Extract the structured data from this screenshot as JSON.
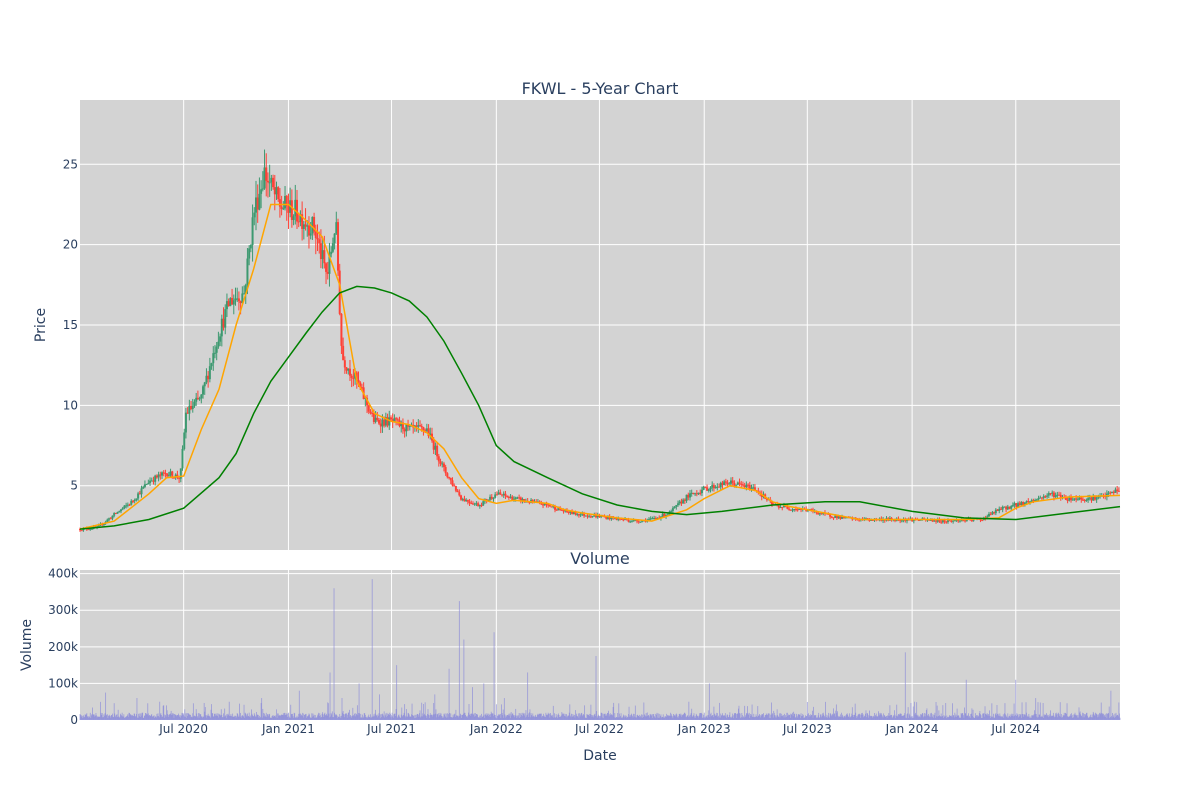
{
  "chart_data": [
    {
      "type": "candlestick",
      "title": "FKWL - 5-Year Chart",
      "ylabel": "Price",
      "ylim": [
        1,
        29
      ],
      "yticks": [
        5,
        10,
        15,
        20,
        25
      ],
      "x_range": [
        "2020-01-01",
        "2024-12-31"
      ],
      "x_ticks": [
        {
          "date": "2020-07-01",
          "label": "Jul 2020"
        },
        {
          "date": "2021-01-01",
          "label": "Jan 2021"
        },
        {
          "date": "2021-07-01",
          "label": "Jul 2021"
        },
        {
          "date": "2022-01-01",
          "label": "Jan 2022"
        },
        {
          "date": "2022-07-01",
          "label": "Jul 2022"
        },
        {
          "date": "2023-01-01",
          "label": "Jan 2023"
        },
        {
          "date": "2023-07-01",
          "label": "Jul 2023"
        },
        {
          "date": "2024-01-01",
          "label": "Jan 2024"
        },
        {
          "date": "2024-07-01",
          "label": "Jul 2024"
        }
      ],
      "colors": {
        "increasing": "#3d9970",
        "decreasing": "#ff4136",
        "ma_short": "#ffa500",
        "ma_long": "#008000",
        "plot_bg": "#d3d3d3",
        "grid": "#ffffff"
      },
      "price_path": [
        [
          "2020-01-01",
          2.3
        ],
        [
          "2020-02-01",
          2.4
        ],
        [
          "2020-03-01",
          3.2
        ],
        [
          "2020-04-01",
          4.0
        ],
        [
          "2020-05-01",
          5.3
        ],
        [
          "2020-06-01",
          5.8
        ],
        [
          "2020-06-25",
          5.5
        ],
        [
          "2020-07-05",
          9.5
        ],
        [
          "2020-08-01",
          10.5
        ],
        [
          "2020-09-01",
          14.5
        ],
        [
          "2020-09-20",
          16.5
        ],
        [
          "2020-10-15",
          17.0
        ],
        [
          "2020-11-01",
          22.0
        ],
        [
          "2020-11-20",
          24.5
        ],
        [
          "2020-12-15",
          22.5
        ],
        [
          "2021-01-15",
          22.0
        ],
        [
          "2021-02-15",
          21.0
        ],
        [
          "2021-03-10",
          18.0
        ],
        [
          "2021-03-25",
          21.5
        ],
        [
          "2021-04-05",
          13.0
        ],
        [
          "2021-05-01",
          11.5
        ],
        [
          "2021-06-01",
          9.0
        ],
        [
          "2021-07-01",
          9.0
        ],
        [
          "2021-08-01",
          8.5
        ],
        [
          "2021-09-01",
          8.5
        ],
        [
          "2021-10-01",
          6.0
        ],
        [
          "2021-11-01",
          4.2
        ],
        [
          "2021-12-01",
          3.8
        ],
        [
          "2022-01-01",
          4.5
        ],
        [
          "2022-02-01",
          4.2
        ],
        [
          "2022-03-01",
          4.0
        ],
        [
          "2022-04-01",
          3.8
        ],
        [
          "2022-05-01",
          3.4
        ],
        [
          "2022-06-01",
          3.2
        ],
        [
          "2022-07-01",
          3.1
        ],
        [
          "2022-09-01",
          2.8
        ],
        [
          "2022-10-01",
          2.9
        ],
        [
          "2022-11-01",
          3.3
        ],
        [
          "2022-12-01",
          4.3
        ],
        [
          "2023-01-01",
          4.8
        ],
        [
          "2023-02-15",
          5.2
        ],
        [
          "2023-04-01",
          4.8
        ],
        [
          "2023-05-01",
          3.8
        ],
        [
          "2023-06-01",
          3.6
        ],
        [
          "2023-07-01",
          3.5
        ],
        [
          "2023-08-01",
          3.2
        ],
        [
          "2023-09-01",
          3.0
        ],
        [
          "2023-10-01",
          2.9
        ],
        [
          "2023-11-01",
          2.9
        ],
        [
          "2024-01-01",
          2.9
        ],
        [
          "2024-03-01",
          2.8
        ],
        [
          "2024-05-01",
          2.9
        ],
        [
          "2024-06-01",
          3.5
        ],
        [
          "2024-07-01",
          3.8
        ],
        [
          "2024-08-01",
          4.1
        ],
        [
          "2024-09-01",
          4.5
        ],
        [
          "2024-10-01",
          4.2
        ],
        [
          "2024-11-01",
          4.2
        ],
        [
          "2024-12-01",
          4.3
        ],
        [
          "2024-12-31",
          4.8
        ]
      ],
      "series": [
        {
          "kind": "moving-average",
          "color": "#ffa500",
          "points": [
            [
              "2020-01-01",
              2.3
            ],
            [
              "2020-03-01",
              2.8
            ],
            [
              "2020-05-01",
              4.5
            ],
            [
              "2020-06-01",
              5.5
            ],
            [
              "2020-07-01",
              5.6
            ],
            [
              "2020-08-01",
              8.5
            ],
            [
              "2020-09-01",
              11.0
            ],
            [
              "2020-10-01",
              15.0
            ],
            [
              "2020-11-01",
              18.5
            ],
            [
              "2020-12-01",
              22.5
            ],
            [
              "2021-01-01",
              22.5
            ],
            [
              "2021-02-01",
              21.5
            ],
            [
              "2021-03-01",
              20.5
            ],
            [
              "2021-04-01",
              17.5
            ],
            [
              "2021-05-01",
              11.5
            ],
            [
              "2021-06-01",
              9.5
            ],
            [
              "2021-07-01",
              9.0
            ],
            [
              "2021-08-01",
              8.8
            ],
            [
              "2021-09-01",
              8.3
            ],
            [
              "2021-10-01",
              7.3
            ],
            [
              "2021-11-01",
              5.5
            ],
            [
              "2021-12-01",
              4.2
            ],
            [
              "2022-01-01",
              3.9
            ],
            [
              "2022-02-01",
              4.1
            ],
            [
              "2022-03-01",
              4.0
            ],
            [
              "2022-04-01",
              3.9
            ],
            [
              "2022-05-01",
              3.5
            ],
            [
              "2022-06-01",
              3.3
            ],
            [
              "2022-08-01",
              3.0
            ],
            [
              "2022-10-01",
              2.8
            ],
            [
              "2022-12-01",
              3.5
            ],
            [
              "2023-01-01",
              4.2
            ],
            [
              "2023-02-15",
              5.0
            ],
            [
              "2023-04-01",
              4.7
            ],
            [
              "2023-05-01",
              4.0
            ],
            [
              "2023-06-01",
              3.7
            ],
            [
              "2023-08-01",
              3.3
            ],
            [
              "2023-10-01",
              2.9
            ],
            [
              "2024-01-01",
              2.9
            ],
            [
              "2024-04-01",
              2.9
            ],
            [
              "2024-06-01",
              3.0
            ],
            [
              "2024-07-01",
              3.6
            ],
            [
              "2024-08-01",
              4.0
            ],
            [
              "2024-10-01",
              4.3
            ],
            [
              "2024-12-31",
              4.4
            ]
          ]
        },
        {
          "kind": "moving-average",
          "color": "#008000",
          "points": [
            [
              "2020-01-01",
              2.3
            ],
            [
              "2020-03-01",
              2.5
            ],
            [
              "2020-05-01",
              2.9
            ],
            [
              "2020-07-01",
              3.6
            ],
            [
              "2020-09-01",
              5.5
            ],
            [
              "2020-10-01",
              7.0
            ],
            [
              "2020-11-01",
              9.5
            ],
            [
              "2020-12-01",
              11.5
            ],
            [
              "2021-01-01",
              13.0
            ],
            [
              "2021-02-01",
              14.5
            ],
            [
              "2021-03-01",
              15.8
            ],
            [
              "2021-04-01",
              17.0
            ],
            [
              "2021-05-01",
              17.4
            ],
            [
              "2021-06-01",
              17.3
            ],
            [
              "2021-07-01",
              17.0
            ],
            [
              "2021-08-01",
              16.5
            ],
            [
              "2021-09-01",
              15.5
            ],
            [
              "2021-10-01",
              14.0
            ],
            [
              "2021-11-01",
              12.0
            ],
            [
              "2021-12-01",
              10.0
            ],
            [
              "2022-01-01",
              7.5
            ],
            [
              "2022-02-01",
              6.5
            ],
            [
              "2022-04-01",
              5.5
            ],
            [
              "2022-06-01",
              4.5
            ],
            [
              "2022-08-01",
              3.8
            ],
            [
              "2022-10-01",
              3.4
            ],
            [
              "2022-12-01",
              3.2
            ],
            [
              "2023-02-01",
              3.4
            ],
            [
              "2023-05-01",
              3.8
            ],
            [
              "2023-08-01",
              4.0
            ],
            [
              "2023-10-01",
              4.0
            ],
            [
              "2024-01-01",
              3.4
            ],
            [
              "2024-04-01",
              3.0
            ],
            [
              "2024-07-01",
              2.9
            ],
            [
              "2024-10-01",
              3.3
            ],
            [
              "2024-12-31",
              3.7
            ]
          ]
        }
      ]
    },
    {
      "type": "bar",
      "title": "Volume",
      "ylabel": "Volume",
      "xlabel": "Date",
      "ylim": [
        0,
        410000
      ],
      "yticks": [
        {
          "value": 0,
          "label": "0"
        },
        {
          "value": 100000,
          "label": "100k"
        },
        {
          "value": 200000,
          "label": "200k"
        },
        {
          "value": 300000,
          "label": "300k"
        },
        {
          "value": 400000,
          "label": "400k"
        }
      ],
      "color": "#8b8bd9",
      "spikes": [
        [
          "2020-02-15",
          75000
        ],
        [
          "2020-04-10",
          60000
        ],
        [
          "2020-05-20",
          50000
        ],
        [
          "2020-11-15",
          60000
        ],
        [
          "2021-01-20",
          80000
        ],
        [
          "2021-03-15",
          130000
        ],
        [
          "2021-03-22",
          360000
        ],
        [
          "2021-04-05",
          60000
        ],
        [
          "2021-05-05",
          100000
        ],
        [
          "2021-05-28",
          385000
        ],
        [
          "2021-06-10",
          70000
        ],
        [
          "2021-07-10",
          150000
        ],
        [
          "2021-09-15",
          70000
        ],
        [
          "2021-10-10",
          140000
        ],
        [
          "2021-10-28",
          325000
        ],
        [
          "2021-11-05",
          220000
        ],
        [
          "2021-11-20",
          90000
        ],
        [
          "2021-12-10",
          100000
        ],
        [
          "2021-12-28",
          240000
        ],
        [
          "2022-01-15",
          60000
        ],
        [
          "2022-02-25",
          130000
        ],
        [
          "2022-06-25",
          175000
        ],
        [
          "2022-12-05",
          50000
        ],
        [
          "2023-01-10",
          100000
        ],
        [
          "2023-12-20",
          185000
        ],
        [
          "2024-01-05",
          50000
        ],
        [
          "2024-04-05",
          110000
        ],
        [
          "2024-07-01",
          110000
        ],
        [
          "2024-08-05",
          60000
        ],
        [
          "2024-12-15",
          80000
        ]
      ]
    }
  ]
}
